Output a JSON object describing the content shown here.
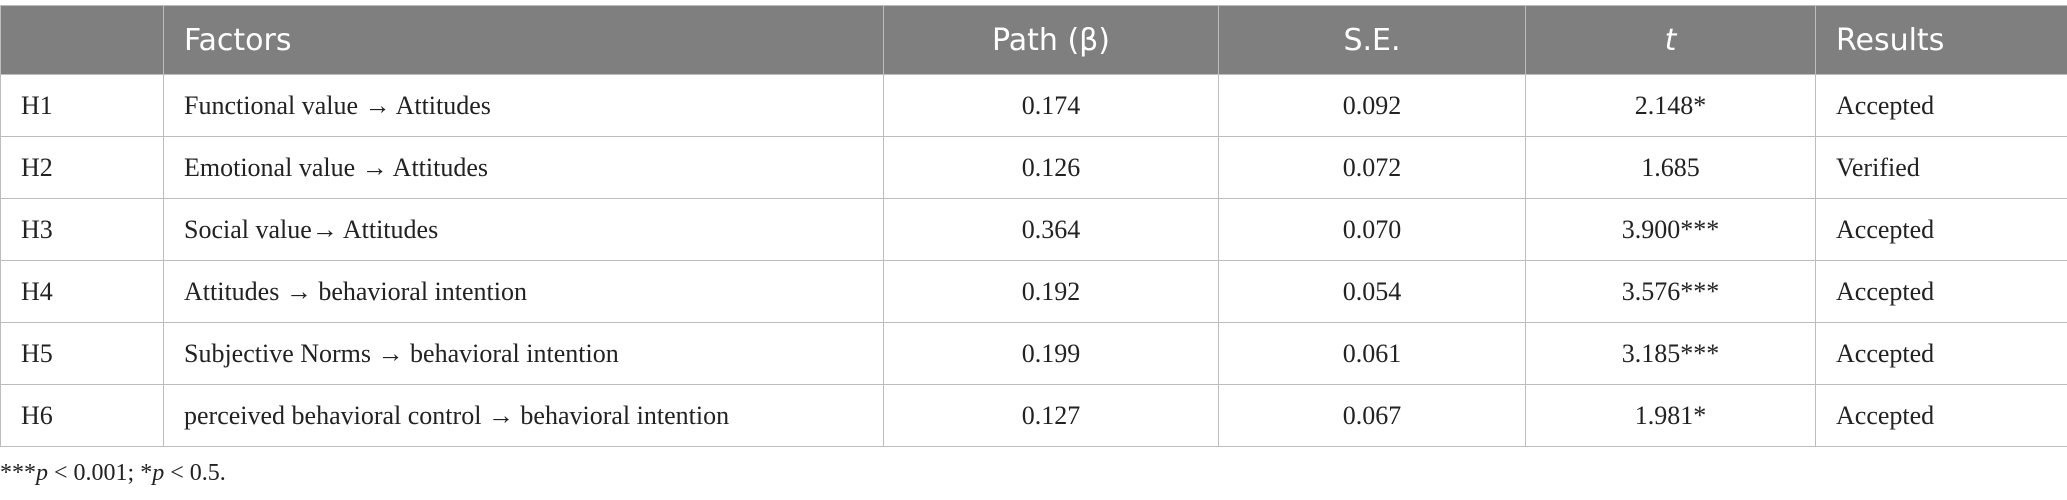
{
  "table": {
    "header": [
      "Factors",
      "Path (β)",
      "S.E.",
      "t",
      "Results"
    ],
    "rows": [
      [
        "H1",
        "Functional value → Attitudes",
        "0.174",
        "0.092",
        "2.148*",
        "Accepted"
      ],
      [
        "H2",
        "Emotional value → Attitudes",
        "0.126",
        "0.072",
        "1.685",
        "Verified"
      ],
      [
        "H3",
        "Social value→ Attitudes",
        "0.364",
        "0.070",
        "3.900***",
        "Accepted"
      ],
      [
        "H4",
        "Attitudes → behavioral intention",
        "0.192",
        "0.054",
        "3.576***",
        "Accepted"
      ],
      [
        "H5",
        "Subjective Norms → behavioral intention",
        "0.199",
        "0.061",
        "3.185***",
        "Accepted"
      ],
      [
        "H6",
        "perceived behavioral control → behavioral intention",
        "0.127",
        "0.067",
        "1.981*",
        "Accepted"
      ]
    ]
  },
  "footnote": [
    "***",
    "p",
    " < 0.001; *",
    "p",
    " < 0.5."
  ]
}
